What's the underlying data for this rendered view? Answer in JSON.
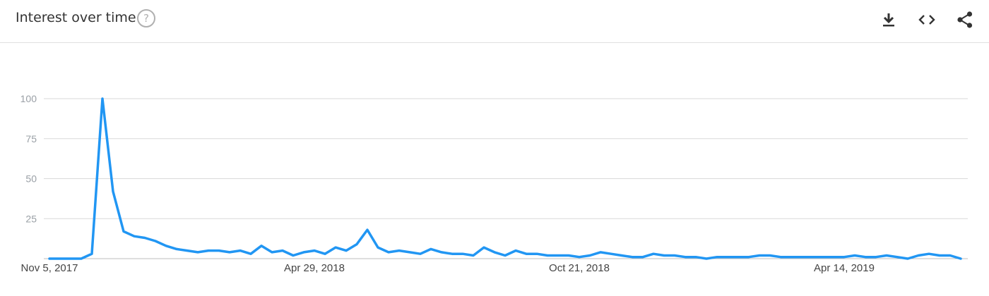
{
  "header": {
    "title": "Interest over time",
    "help_glyph": "?",
    "tools": [
      {
        "name": "download-icon",
        "label": "download"
      },
      {
        "name": "embed-icon",
        "label": "embed"
      },
      {
        "name": "share-icon",
        "label": "share"
      }
    ]
  },
  "colors": {
    "line": "#2196f3",
    "grid": "#d9d9d9",
    "tick": "#9aa0a6",
    "icon": "#333333"
  },
  "chart_data": {
    "type": "line",
    "title": "",
    "xlabel": "",
    "ylabel": "",
    "ylim": [
      0,
      100
    ],
    "yticks": [
      "100",
      "75",
      "50",
      "25"
    ],
    "xticks": [
      "Nov 5, 2017",
      "Apr 29, 2018",
      "Oct 21, 2018",
      "Apr 14, 2019"
    ],
    "x_start": "Nov 5, 2017",
    "x_step": "1 week",
    "grid": true,
    "series": [
      {
        "values": [
          0,
          0,
          0,
          0,
          3,
          100,
          42,
          17,
          14,
          13,
          11,
          8,
          6,
          5,
          4,
          5,
          5,
          4,
          5,
          3,
          8,
          4,
          5,
          2,
          4,
          5,
          3,
          7,
          5,
          9,
          18,
          7,
          4,
          5,
          4,
          3,
          6,
          4,
          3,
          3,
          2,
          7,
          4,
          2,
          5,
          3,
          3,
          2,
          2,
          2,
          1,
          2,
          4,
          3,
          2,
          1,
          1,
          3,
          2,
          2,
          1,
          1,
          0,
          1,
          1,
          1,
          1,
          2,
          2,
          1,
          1,
          1,
          1,
          1,
          1,
          1,
          2,
          1,
          1,
          2,
          1,
          0,
          2,
          3,
          2,
          2,
          0
        ]
      }
    ]
  }
}
